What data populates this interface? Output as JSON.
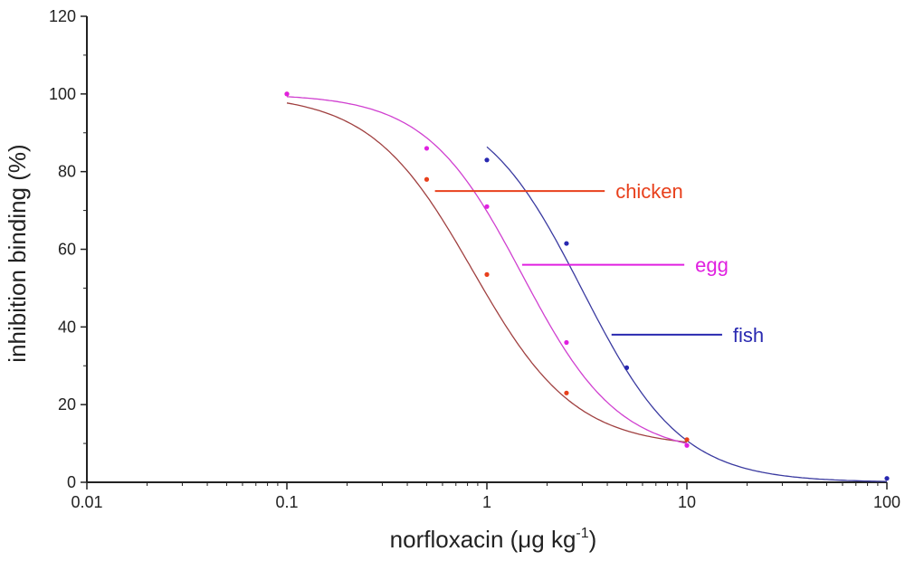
{
  "chart_data": {
    "type": "scatter",
    "title": "",
    "xlabel": "norfloxacin (μg kg",
    "xlabel_sup": "-1",
    "xlabel_close": ")",
    "ylabel": "inhibition binding (%)",
    "xscale": "log",
    "xlim": [
      0.01,
      100
    ],
    "ylim": [
      0,
      120
    ],
    "x_ticks": [
      0.01,
      0.1,
      1,
      10,
      100
    ],
    "x_tick_labels": [
      "0.01",
      "0.1",
      "1",
      "10",
      "100"
    ],
    "y_ticks": [
      0,
      20,
      40,
      60,
      80,
      100,
      120
    ],
    "y_tick_labels": [
      "0",
      "20",
      "40",
      "60",
      "80",
      "100",
      "120"
    ],
    "grid": false,
    "series": [
      {
        "name": "chicken",
        "color": "#e8401c",
        "curve_color": "#a04040",
        "x": [
          0.1,
          0.5,
          1,
          2.5,
          10
        ],
        "y": [
          100,
          78,
          53.5,
          23,
          11
        ],
        "fit": {
          "top": 100,
          "bottom": 9,
          "ic50": 0.85,
          "slope": 1.7
        },
        "label_anchor": {
          "x": 0.55,
          "y": 75
        },
        "label_pos": {
          "x": 4.4,
          "y": 75
        }
      },
      {
        "name": "egg",
        "color": "#e020e0",
        "curve_color": "#d040d0",
        "x": [
          0.1,
          0.5,
          1,
          2.5,
          10
        ],
        "y": [
          100,
          86,
          71,
          36,
          9.5
        ],
        "fit": {
          "top": 100,
          "bottom": 7,
          "ic50": 1.5,
          "slope": 1.8
        },
        "label_anchor": {
          "x": 1.5,
          "y": 56
        },
        "label_pos": {
          "x": 11,
          "y": 56
        }
      },
      {
        "name": "fish",
        "color": "#2828b0",
        "curve_color": "#3a3aa0",
        "x": [
          1,
          2.5,
          5,
          100
        ],
        "y": [
          83,
          61.5,
          29.5,
          1
        ],
        "fit": {
          "top": 99,
          "bottom": 0,
          "ic50": 3,
          "slope": 1.75
        },
        "label_anchor": {
          "x": 4.2,
          "y": 38
        },
        "label_pos": {
          "x": 17,
          "y": 38
        }
      }
    ]
  }
}
